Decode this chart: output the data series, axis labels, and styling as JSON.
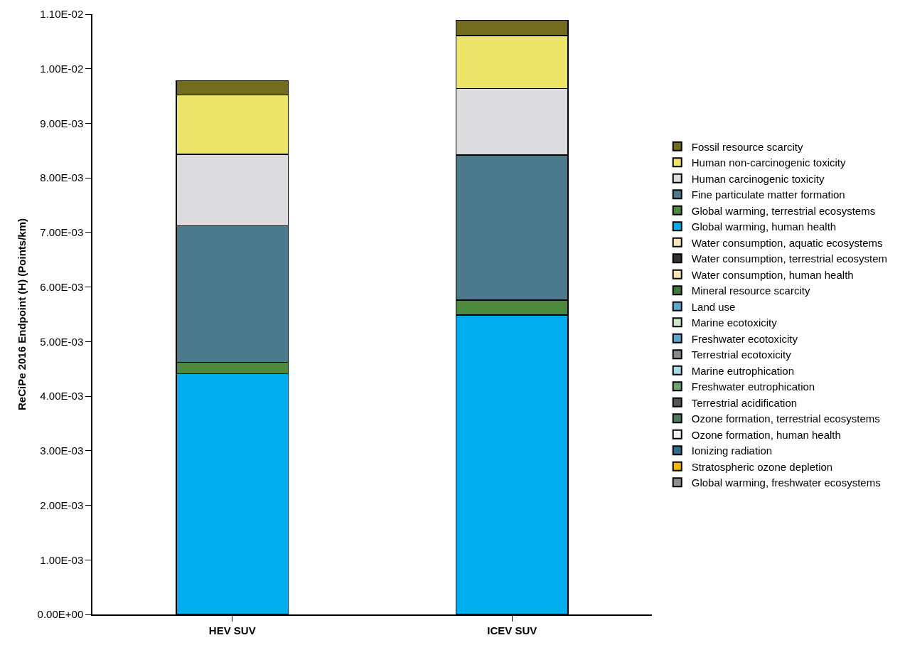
{
  "chart_data": {
    "type": "bar",
    "stacked": true,
    "ylabel": "ReCiPe 2016 Endpoint (H) (Points/km)",
    "categories": [
      "HEV SUV",
      "ICEV SUV"
    ],
    "series": [
      {
        "name": "Global warming, freshwater ecosystems",
        "color": "#8f8f8f",
        "values": [
          0,
          0
        ]
      },
      {
        "name": "Stratospheric ozone depletion",
        "color": "#f5b800",
        "values": [
          0,
          0
        ]
      },
      {
        "name": "Ionizing radiation",
        "color": "#2f6e86",
        "values": [
          0,
          0
        ]
      },
      {
        "name": "Ozone formation, human health",
        "color": "#f2f2f2",
        "values": [
          0,
          0
        ]
      },
      {
        "name": "Ozone formation, terrestrial ecosystems",
        "color": "#4d7a5a",
        "values": [
          0,
          0
        ]
      },
      {
        "name": "Terrestrial acidification",
        "color": "#555555",
        "values": [
          0,
          0
        ]
      },
      {
        "name": "Freshwater eutrophication",
        "color": "#6ea676",
        "values": [
          0,
          0
        ]
      },
      {
        "name": "Marine eutrophication",
        "color": "#a7d9ea",
        "values": [
          0,
          0
        ]
      },
      {
        "name": "Terrestrial ecotoxicity",
        "color": "#8a8a8a",
        "values": [
          0,
          0
        ]
      },
      {
        "name": "Freshwater ecotoxicity",
        "color": "#5aa7d2",
        "values": [
          0,
          0
        ]
      },
      {
        "name": "Marine ecotoxicity",
        "color": "#cde6c8",
        "values": [
          0,
          0
        ]
      },
      {
        "name": "Land use",
        "color": "#5ba8d0",
        "values": [
          0,
          0
        ]
      },
      {
        "name": "Mineral resource scarcity",
        "color": "#3f7a3a",
        "values": [
          0,
          0
        ]
      },
      {
        "name": "Water consumption, human health",
        "color": "#f8e6b4",
        "values": [
          0,
          0
        ]
      },
      {
        "name": "Water consumption, terrestrial ecosystem",
        "color": "#333333",
        "values": [
          0,
          0
        ]
      },
      {
        "name": "Water consumption, aquatic ecosystems",
        "color": "#f8e6b4",
        "values": [
          0,
          0
        ]
      },
      {
        "name": "Global warming, human health",
        "color": "#00adef",
        "values": [
          0.00441,
          0.00549
        ]
      },
      {
        "name": "Global warming, terrestrial ecosystems",
        "color": "#4e8a3e",
        "values": [
          0.00021,
          0.00027
        ]
      },
      {
        "name": "Fine particulate matter formation",
        "color": "#4a7a8c",
        "values": [
          0.0025,
          0.00266
        ]
      },
      {
        "name": "Human carcinogenic toxicity",
        "color": "#dcdcde",
        "values": [
          0.00131,
          0.00122
        ]
      },
      {
        "name": "Human non-carcinogenic toxicity",
        "color": "#ede46a",
        "values": [
          0.00109,
          0.00097
        ]
      },
      {
        "name": "Fossil resource scarcity",
        "color": "#736b1e",
        "values": [
          0.00026,
          0.00028
        ]
      }
    ],
    "ylim": [
      0,
      0.011
    ],
    "yticks": [
      {
        "value": 0,
        "label": "0.00E+00"
      },
      {
        "value": 0.001,
        "label": "1.00E-03"
      },
      {
        "value": 0.002,
        "label": "2.00E-03"
      },
      {
        "value": 0.003,
        "label": "3.00E-03"
      },
      {
        "value": 0.004,
        "label": "4.00E-03"
      },
      {
        "value": 0.005,
        "label": "5.00E-03"
      },
      {
        "value": 0.006,
        "label": "6.00E-03"
      },
      {
        "value": 0.007,
        "label": "7.00E-03"
      },
      {
        "value": 0.008,
        "label": "8.00E-03"
      },
      {
        "value": 0.009,
        "label": "9.00E-03"
      },
      {
        "value": 0.01,
        "label": "1.00E-02"
      },
      {
        "value": 0.011,
        "label": "1.10E-02"
      }
    ],
    "legend": "right"
  }
}
